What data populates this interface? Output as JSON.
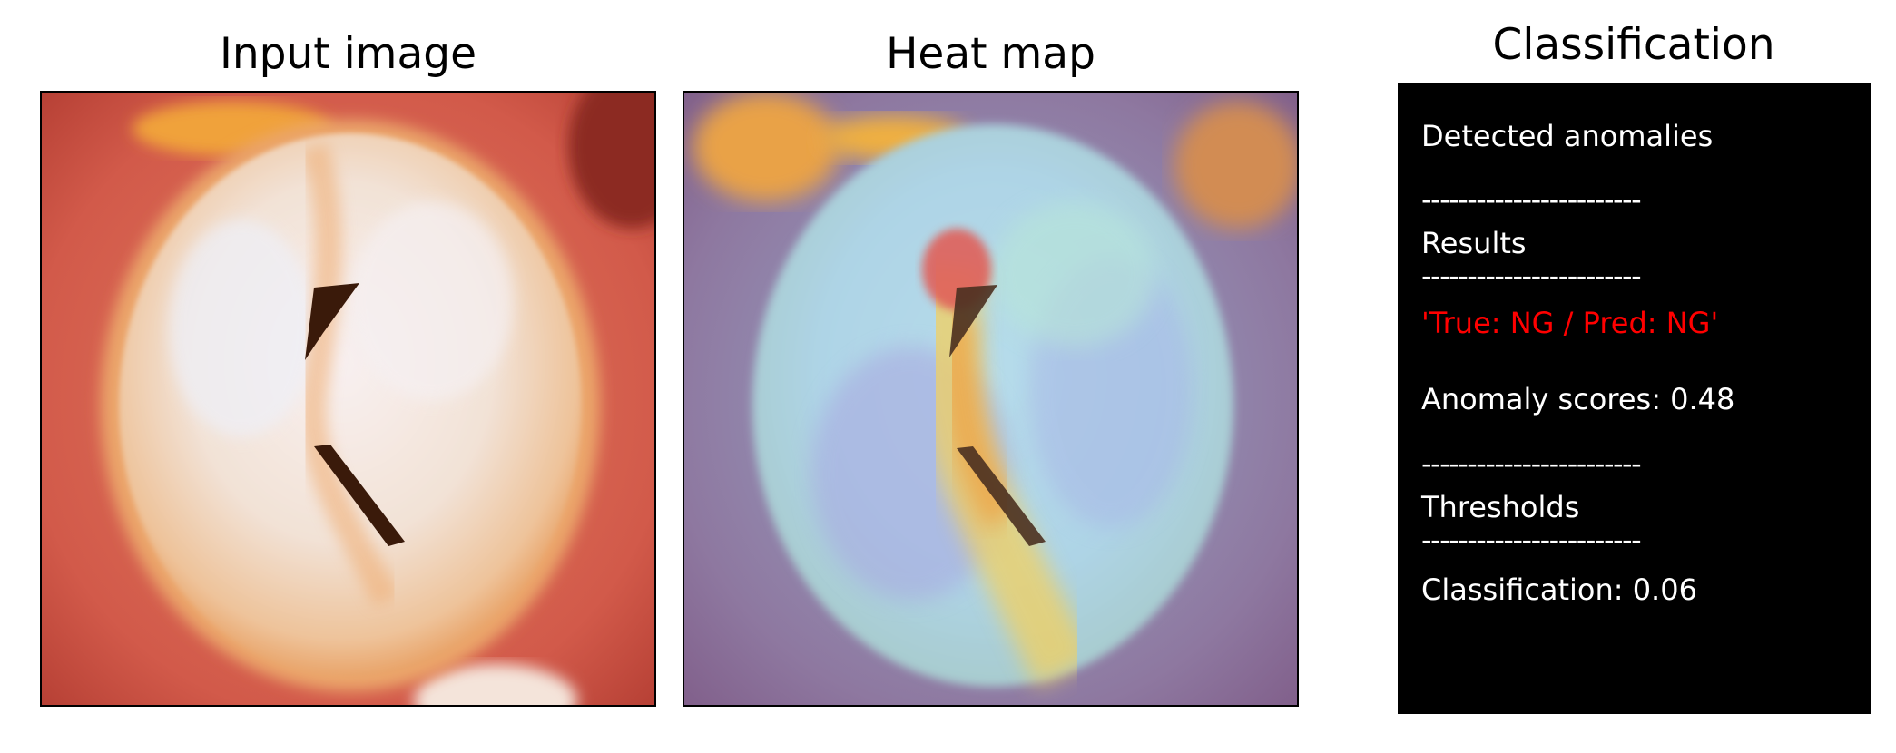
{
  "panels": {
    "input_title": "Input image",
    "heatmap_title": "Heat map",
    "classification_title": "Classification"
  },
  "classification": {
    "detected_label": "Detected anomalies",
    "divider": "------------------------",
    "results_label": "Results",
    "verdict": "'True: NG / Pred: NG'",
    "anomaly_score": "Anomaly scores: 0.48",
    "thresholds_label": "Thresholds",
    "classification_threshold": "Classification: 0.06"
  },
  "colors": {
    "verdict": "#ff0000",
    "box_background": "#000000",
    "box_text": "#ffffff",
    "gum": "#cf5a4c",
    "tooth": "#f3e6dc",
    "fissure": "#3a1a0a"
  }
}
